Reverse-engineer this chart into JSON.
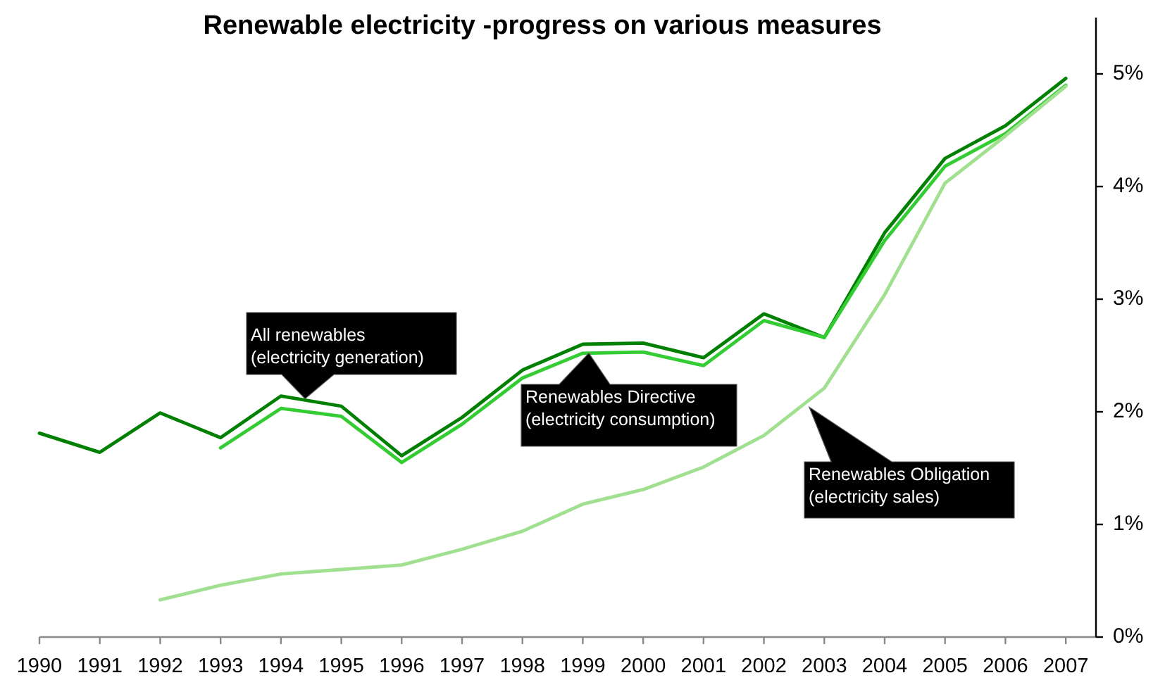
{
  "chart_data": {
    "type": "line",
    "title": "Renewable electricity -progress on various measures",
    "categories": [
      "1990",
      "1991",
      "1992",
      "1993",
      "1994",
      "1995",
      "1996",
      "1997",
      "1998",
      "1999",
      "2000",
      "2001",
      "2002",
      "2003",
      "2004",
      "2005",
      "2006",
      "2007"
    ],
    "series": [
      {
        "name": "All renewables\n(electricity generation)",
        "color": "#008000",
        "values": [
          1.81,
          1.64,
          1.99,
          1.77,
          2.14,
          2.05,
          1.61,
          1.95,
          2.37,
          2.6,
          2.61,
          2.48,
          2.87,
          2.66,
          3.59,
          4.25,
          4.54,
          4.96
        ]
      },
      {
        "name": "Renewables Directive\n(electricity consumption)",
        "color": "#33cc33",
        "values": [
          null,
          null,
          null,
          1.68,
          2.03,
          1.96,
          1.55,
          1.89,
          2.3,
          2.52,
          2.53,
          2.41,
          2.81,
          2.66,
          3.52,
          4.18,
          4.47,
          4.9
        ]
      },
      {
        "name": "Renewables Obligation\n(electricity sales)",
        "color": "#a0e090",
        "values": [
          null,
          null,
          0.33,
          0.46,
          0.56,
          0.6,
          0.64,
          0.78,
          0.94,
          1.18,
          1.31,
          1.51,
          1.79,
          2.21,
          3.04,
          4.03,
          4.45,
          4.89
        ]
      }
    ],
    "ylim": [
      0,
      5.5
    ],
    "yticks": [
      {
        "value": 0,
        "label": "0%"
      },
      {
        "value": 1,
        "label": "1%"
      },
      {
        "value": 2,
        "label": "2%"
      },
      {
        "value": 3,
        "label": "3%"
      },
      {
        "value": 4,
        "label": "4%"
      },
      {
        "value": 5,
        "label": "5%"
      }
    ]
  }
}
